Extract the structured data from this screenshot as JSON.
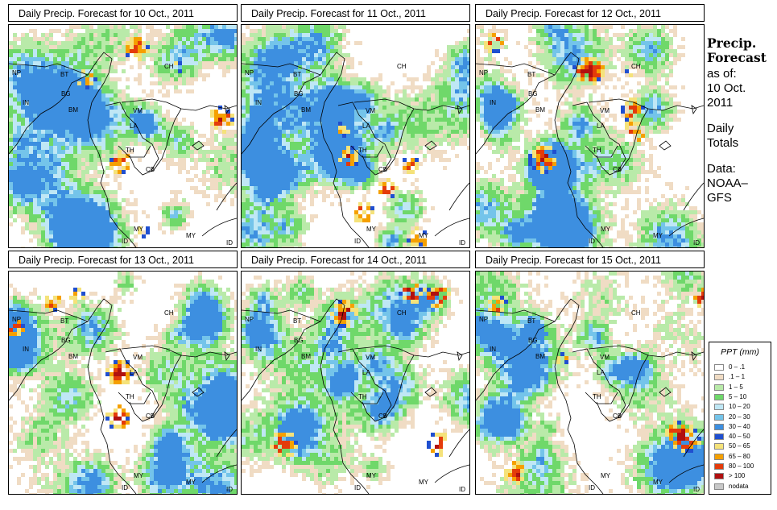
{
  "panels": [
    {
      "title": "Daily Precip. Forecast for  10 Oct., 2011",
      "seed": 11
    },
    {
      "title": "Daily Precip. Forecast for  11 Oct., 2011",
      "seed": 23
    },
    {
      "title": "Daily Precip. Forecast for  12 Oct., 2011",
      "seed": 37
    },
    {
      "title": "Daily Precip. Forecast for  13 Oct., 2011",
      "seed": 41
    },
    {
      "title": "Daily Precip. Forecast for  14 Oct., 2011",
      "seed": 53
    },
    {
      "title": "Daily Precip. Forecast for  15 Oct., 2011",
      "seed": 67
    }
  ],
  "country_labels": [
    {
      "code": "NP"
    },
    {
      "code": "BT"
    },
    {
      "code": "CH"
    },
    {
      "code": "IN"
    },
    {
      "code": "BG"
    },
    {
      "code": "BM"
    },
    {
      "code": "VM"
    },
    {
      "code": "LA"
    },
    {
      "code": "TH"
    },
    {
      "code": "CB"
    },
    {
      "code": "MY"
    },
    {
      "code": "ID"
    },
    {
      "code": "MY"
    },
    {
      "code": "ID"
    }
  ],
  "sidebar": {
    "title_line1": "Precip.",
    "title_line2": "Forecast",
    "asof_label": "as of:",
    "date_line1": "10 Oct.",
    "date_line2": "2011",
    "totals_line1": "Daily",
    "totals_line2": "Totals",
    "data_line1": "Data:",
    "data_line2": "NOAA–",
    "data_line3": "GFS"
  },
  "legend": {
    "title": "PPT (mm)",
    "entries": [
      {
        "label": "0 – .1",
        "color": "#ffffff"
      },
      {
        "label": ".1 – 1",
        "color": "#f0dcc4"
      },
      {
        "label": "1 – 5",
        "color": "#b9eaa9"
      },
      {
        "label": "5 – 10",
        "color": "#6fd86a"
      },
      {
        "label": "10 – 20",
        "color": "#bfe7f5"
      },
      {
        "label": "20 – 30",
        "color": "#74c4ea"
      },
      {
        "label": "30 – 40",
        "color": "#3d8fe0"
      },
      {
        "label": "40 – 50",
        "color": "#1f4fd0"
      },
      {
        "label": "50 – 65",
        "color": "#f5e27a"
      },
      {
        "label": "65 – 80",
        "color": "#f5a000"
      },
      {
        "label": "80 – 100",
        "color": "#e43b0a"
      },
      {
        "label": "> 100",
        "color": "#b01010"
      },
      {
        "label": "nodata",
        "color": "#c8c8c8"
      }
    ]
  }
}
